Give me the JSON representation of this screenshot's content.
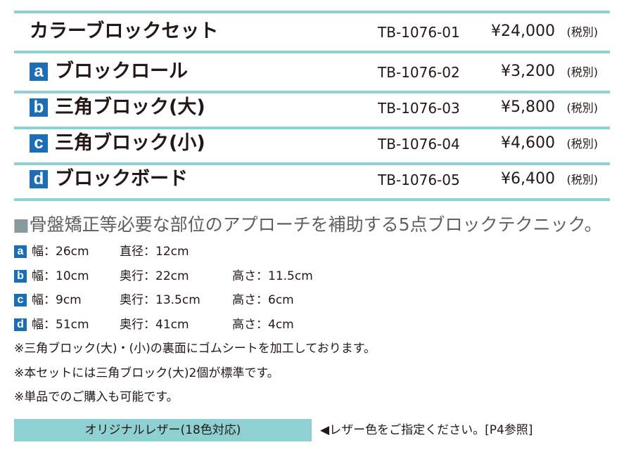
{
  "products": [
    {
      "name": "カラーブロックセット",
      "code": "TB-1076-01",
      "price": "¥24,000",
      "tax": "(税別)"
    },
    {
      "badge": "a",
      "name": "ブロックロール",
      "code": "TB-1076-02",
      "price": "¥3,200",
      "tax": "(税別)"
    },
    {
      "badge": "b",
      "name": "三角ブロック(大)",
      "code": "TB-1076-03",
      "price": "¥5,800",
      "tax": "(税別)"
    },
    {
      "badge": "c",
      "name": "三角ブロック(小)",
      "code": "TB-1076-04",
      "price": "¥4,600",
      "tax": "(税別)"
    },
    {
      "badge": "d",
      "name": "ブロックボード",
      "code": "TB-1076-05",
      "price": "¥6,400",
      "tax": "(税別)"
    }
  ],
  "headline": {
    "marker": "■",
    "text": "骨盤矯正等必要な部位のアプローチを補助する5点ブロックテクニック。"
  },
  "specs": [
    {
      "badge": "a",
      "items": [
        "幅：26cm",
        "直径：12cm"
      ]
    },
    {
      "badge": "b",
      "items": [
        "幅：10cm",
        "奥行：22cm",
        "高さ：11.5cm"
      ]
    },
    {
      "badge": "c",
      "items": [
        "幅：9cm",
        "奥行：13.5cm",
        "高さ：6cm"
      ]
    },
    {
      "badge": "d",
      "items": [
        "幅：51cm",
        "奥行：41cm",
        "高さ：4cm"
      ]
    }
  ],
  "notes": [
    "※三角ブロック(大)・(小)の裏面にゴムシートを加工しております。",
    "※本セットには三角ブロック(大)2個が標準です。",
    "※単品でのご購入も可能です。"
  ],
  "leather": {
    "label": "オリジナルレザー(18色対応)",
    "note": "◀レザー色をご指定ください。[P4参照]"
  }
}
